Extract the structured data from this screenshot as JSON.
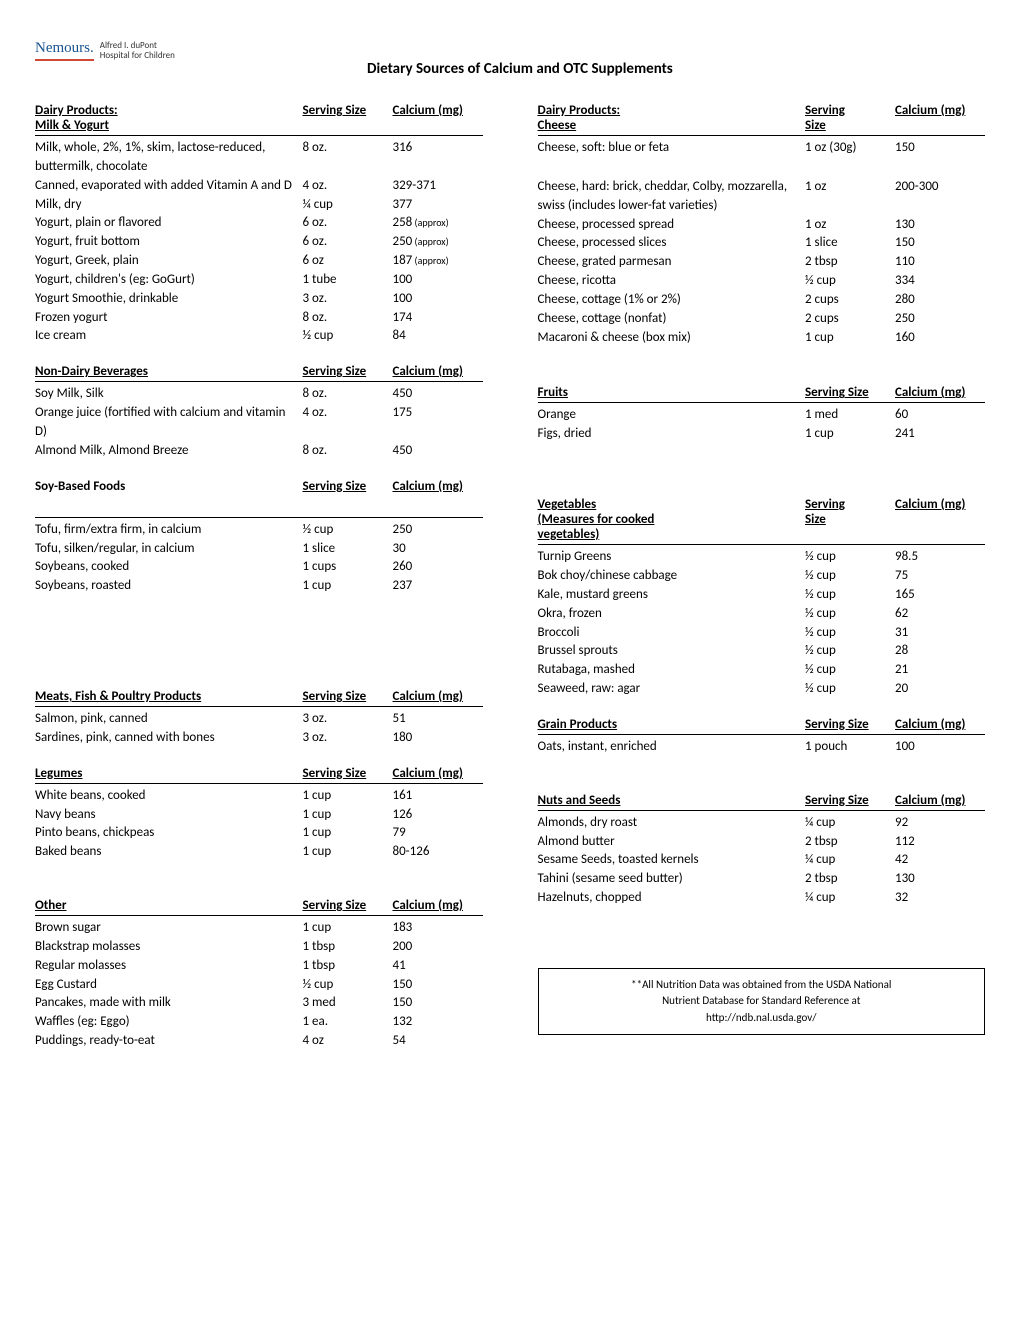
{
  "logo": {
    "brand": "Nemours.",
    "sub1": "Alfred I. duPont",
    "sub2": "Hospital for Children"
  },
  "title": "Dietary Sources of Calcium and OTC Supplements",
  "left": [
    {
      "header": {
        "line1": "Dairy Products:",
        "line2": "Milk & Yogurt",
        "col2": "Serving Size",
        "col3": "Calcium (mg)"
      },
      "rows": [
        {
          "c1": "Milk, whole, 2%, 1%, skim, lactose-reduced, buttermilk, chocolate",
          "c2": "8 oz.",
          "c3": "316"
        },
        {
          "c1": "Canned, evaporated with added Vitamin A and D",
          "c2": "4 oz.",
          "c3": "329-371"
        },
        {
          "c1": "Milk, dry",
          "c2": "¼ cup",
          "c3": "377"
        },
        {
          "c1": "Yogurt, plain or flavored",
          "c2": "6 oz.",
          "c3": "258",
          "approx": " (approx)"
        },
        {
          "c1": "Yogurt, fruit bottom",
          "c2": "6 oz.",
          "c3": "250",
          "approx": " (approx)"
        },
        {
          "c1": "Yogurt, Greek, plain",
          "c2": "6 oz",
          "c3": "187",
          "approx": " (approx)"
        },
        {
          "c1": "Yogurt, children's (eg: GoGurt)",
          "c2": "1 tube",
          "c3": "100"
        },
        {
          "c1": "Yogurt Smoothie, drinkable",
          "c2": "3 oz.",
          "c3": "100"
        },
        {
          "c1": "Frozen yogurt",
          "c2": "8 oz.",
          "c3": "174"
        },
        {
          "c1": "Ice cream",
          "c2": "½ cup",
          "c3": "84"
        }
      ]
    },
    {
      "header": {
        "line1": "Non-Dairy Beverages",
        "col2": "Serving Size",
        "col3": "Calcium (mg)"
      },
      "rows": [
        {
          "c1": "Soy Milk, Silk",
          "c2": "8 oz.",
          "c3": "450"
        },
        {
          "c1": "Orange juice (fortified with calcium and vitamin D)",
          "c2": "4 oz.",
          "c3": "175"
        },
        {
          "c1": "Almond Milk, Almond Breeze",
          "c2": "8 oz.",
          "c3": "450"
        }
      ]
    },
    {
      "header": {
        "line1": "Soy-Based Foods",
        "col2": "Serving Size",
        "col3": "Calcium (mg)",
        "noTopLine": true
      },
      "rows": [
        {
          "c1": "Tofu, firm/extra firm, in calcium",
          "c2": "½ cup",
          "c3": "250"
        },
        {
          "c1": "Tofu, silken/regular, in calcium",
          "c2": "1 slice",
          "c3": "30"
        },
        {
          "c1": "Soybeans, cooked",
          "c2": "1 cups",
          "c3": "260"
        },
        {
          "c1": "Soybeans, roasted",
          "c2": "1 cup",
          "c3": "237"
        }
      ],
      "extraSpace": 75
    },
    {
      "header": {
        "line1": "Meats, Fish & Poultry Products",
        "col2": "Serving Size",
        "col3": "Calcium (mg)"
      },
      "rows": [
        {
          "c1": "Salmon, pink, canned",
          "c2": "3 oz.",
          "c3": "51"
        },
        {
          "c1": "Sardines, pink, canned with bones",
          "c2": "3 oz.",
          "c3": "180"
        }
      ]
    },
    {
      "header": {
        "line1": "Legumes",
        "col2": "Serving Size",
        "col3": "Calcium (mg)"
      },
      "rows": [
        {
          "c1": "White beans, cooked",
          "c2": "1 cup",
          "c3": "161"
        },
        {
          "c1": "Navy beans",
          "c2": "1 cup",
          "c3": "126"
        },
        {
          "c1": "Pinto beans, chickpeas",
          "c2": "1 cup",
          "c3": "79"
        },
        {
          "c1": "Baked beans",
          "c2": "1 cup",
          "c3": "80-126"
        }
      ],
      "extraSpace": 18
    },
    {
      "header": {
        "line1": "Other",
        "col2": "Serving Size",
        "col3": "Calcium (mg)"
      },
      "rows": [
        {
          "c1": "Brown sugar",
          "c2": "1 cup",
          "c3": "183"
        },
        {
          "c1": "Blackstrap molasses",
          "c2": "1 tbsp",
          "c3": "200"
        },
        {
          "c1": "Regular molasses",
          "c2": "1 tbsp",
          "c3": "41"
        },
        {
          "c1": "Egg Custard",
          "c2": "½ cup",
          "c3": "150"
        },
        {
          "c1": "Pancakes, made with milk",
          "c2": "3 med",
          "c3": "150"
        },
        {
          "c1": "Waffles (eg: Eggo)",
          "c2": "1 ea.",
          "c3": "132"
        },
        {
          "c1": "Puddings, ready-to-eat",
          "c2": "4 oz",
          "c3": "54"
        }
      ]
    }
  ],
  "right": [
    {
      "header": {
        "line1": "Dairy Products:",
        "line2": "Cheese",
        "col2": "Serving",
        "col2b": "Size",
        "col3": "Calcium (mg)"
      },
      "rows": [
        {
          "c1": "Cheese, soft: blue or feta",
          "c2": "1 oz (30g)",
          "c3": "150",
          "extraBottom": 20
        },
        {
          "c1": "Cheese, hard: brick, cheddar, Colby, mozzarella, swiss (includes lower-fat varieties)",
          "c2": "1 oz",
          "c3": "200-300"
        },
        {
          "c1": "Cheese, processed spread",
          "c2": "1 oz",
          "c3": "130"
        },
        {
          "c1": "Cheese,  processed slices",
          "c2": "1 slice",
          "c3": "150"
        },
        {
          "c1": "Cheese, grated parmesan",
          "c2": "2 tbsp",
          "c3": "110"
        },
        {
          "c1": "Cheese, ricotta",
          "c2": "½ cup",
          "c3": "334"
        },
        {
          "c1": "Cheese, cottage (1% or 2%)",
          "c2": "2 cups",
          "c3": "280"
        },
        {
          "c1": "Cheese, cottage (nonfat)",
          "c2": "2 cups",
          "c3": "250"
        },
        {
          "c1": "Macaroni & cheese (box mix)",
          "c2": "1 cup",
          "c3": "160"
        }
      ],
      "extraSpace": 20
    },
    {
      "header": {
        "line1": "Fruits",
        "col2": "Serving Size",
        "col3": "Calcium (mg)"
      },
      "rows": [
        {
          "c1": "Orange",
          "c2": "1 med",
          "c3": "60"
        },
        {
          "c1": "Figs, dried",
          "c2": "1 cup",
          "c3": "241"
        }
      ],
      "extraSpace": 35
    },
    {
      "header": {
        "line1": "Vegetables",
        "line1b": "(Measures for cooked",
        "line2": "vegetables)",
        "col2": "Serving",
        "col2b": "Size",
        "col3": "Calcium (mg)"
      },
      "rows": [
        {
          "c1": "Turnip Greens",
          "c2": "½  cup",
          "c3": "98.5"
        },
        {
          "c1": "Bok choy/chinese cabbage",
          "c2": "½  cup",
          "c3": "75"
        },
        {
          "c1": "Kale, mustard greens",
          "c2": "½  cup",
          "c3": "165"
        },
        {
          "c1": "Okra, frozen",
          "c2": "½ cup",
          "c3": "62"
        },
        {
          "c1": "Broccoli",
          "c2": "½ cup",
          "c3": "31"
        },
        {
          "c1": "Brussel sprouts",
          "c2": "½ cup",
          "c3": "28"
        },
        {
          "c1": "Rutabaga, mashed",
          "c2": "½ cup",
          "c3": "21"
        },
        {
          "c1": "Seaweed, raw: agar",
          "c2": "½ cup",
          "c3": "20"
        }
      ]
    },
    {
      "header": {
        "line1": "Grain Products",
        "col2": "Serving Size",
        "col3": "Calcium (mg)"
      },
      "rows": [
        {
          "c1": "Oats, instant, enriched",
          "c2": "1 pouch",
          "c3": "100"
        }
      ],
      "extraSpace": 18
    },
    {
      "header": {
        "line1": "Nuts and Seeds",
        "col2": "Serving Size",
        "col3": "Calcium (mg)"
      },
      "rows": [
        {
          "c1": "Almonds, dry roast",
          "c2": "¼ cup",
          "c3": "92"
        },
        {
          "c1": "Almond butter",
          "c2": "2 tbsp",
          "c3": "112"
        },
        {
          "c1": "Sesame Seeds, toasted kernels",
          "c2": "¼ cup",
          "c3": "42"
        },
        {
          "c1": "Tahini (sesame seed butter)",
          "c2": "2 tbsp",
          "c3": "130"
        },
        {
          "c1": "Hazelnuts, chopped",
          "c2": "¼ cup",
          "c3": "32"
        }
      ]
    }
  ],
  "footnote": {
    "line1": "**All Nutrition Data was obtained from the USDA National",
    "line2": "Nutrient Database for Standard Reference at",
    "line3": "http://ndb.nal.usda.gov/"
  }
}
